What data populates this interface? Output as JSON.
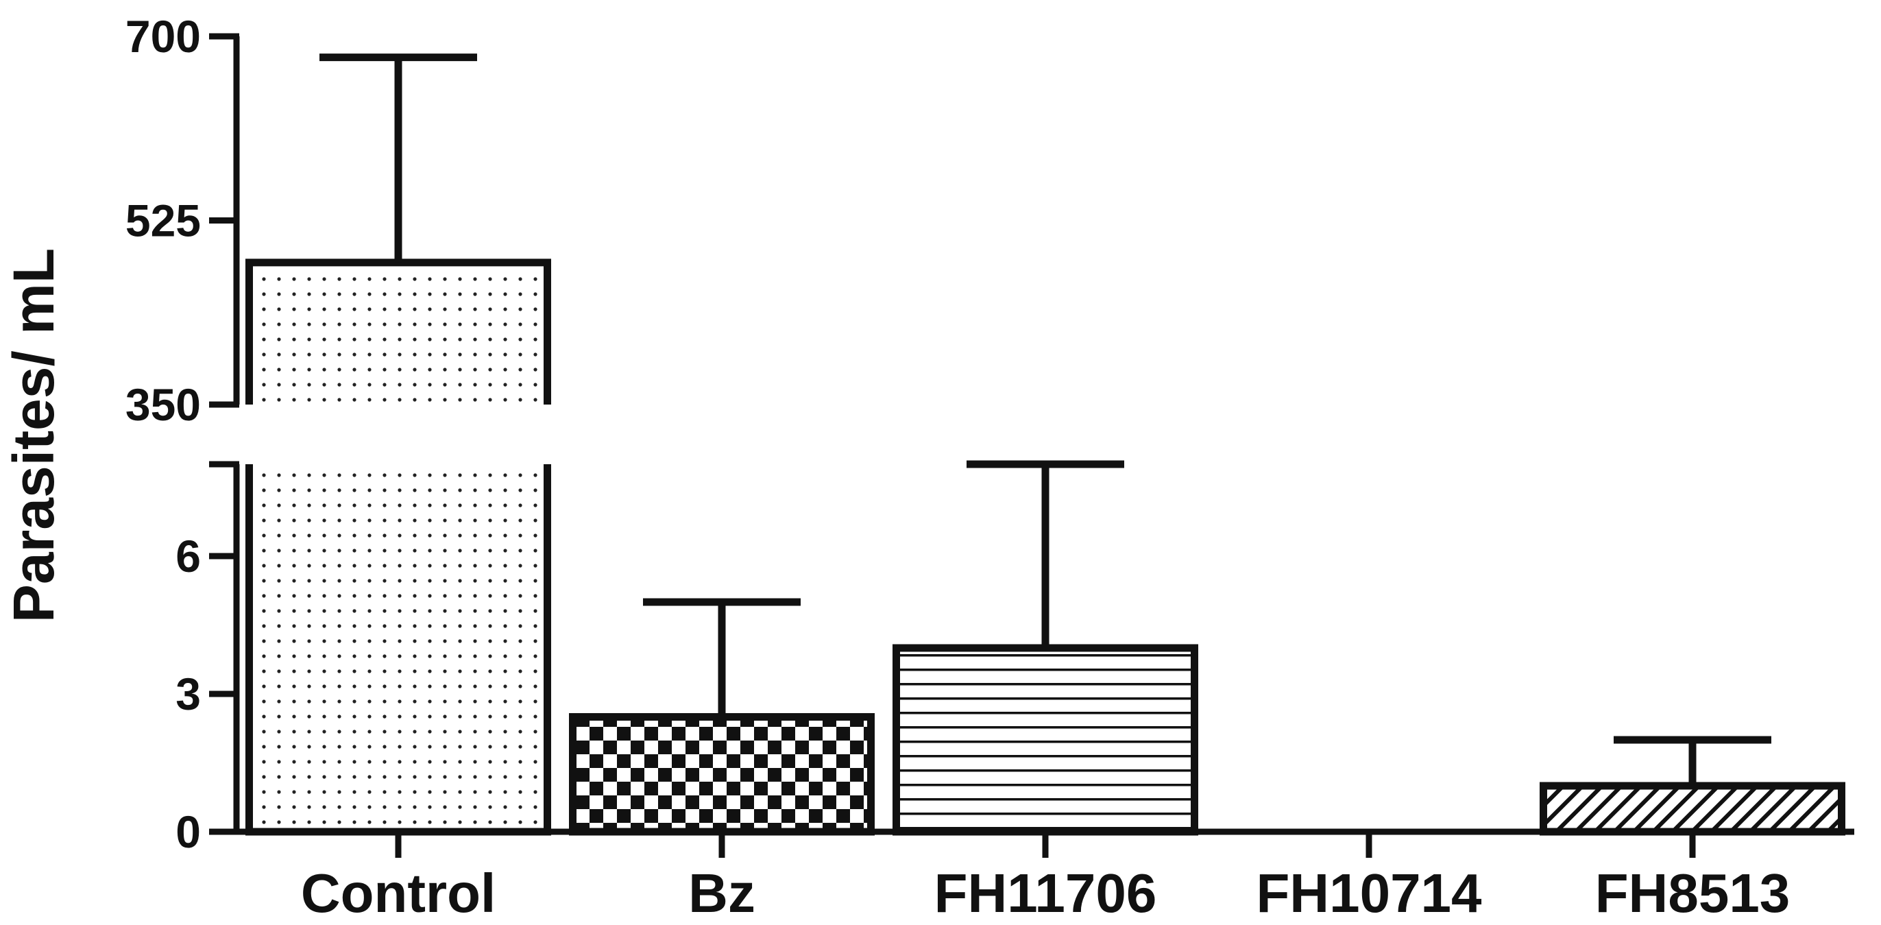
{
  "chart_data": {
    "type": "bar",
    "title": "",
    "xlabel": "",
    "ylabel": "Parasites/ mL",
    "axis_break": true,
    "lower_segment": {
      "ylim": [
        0,
        8
      ],
      "ticks": [
        0,
        3,
        6
      ]
    },
    "upper_segment": {
      "ylim": [
        350,
        700
      ],
      "ticks": [
        350,
        525,
        700
      ]
    },
    "categories": [
      "Control",
      "Bz",
      "FH11706",
      "FH10714",
      "FH8513"
    ],
    "values": [
      485,
      2.5,
      4,
      0,
      1
    ],
    "error_upper": [
      680,
      5,
      8,
      0,
      2
    ],
    "patterns": [
      "dots",
      "checkerboard",
      "horizontal-lines",
      "none",
      "diagonal-hatch"
    ],
    "grid": false,
    "legend": "none"
  }
}
